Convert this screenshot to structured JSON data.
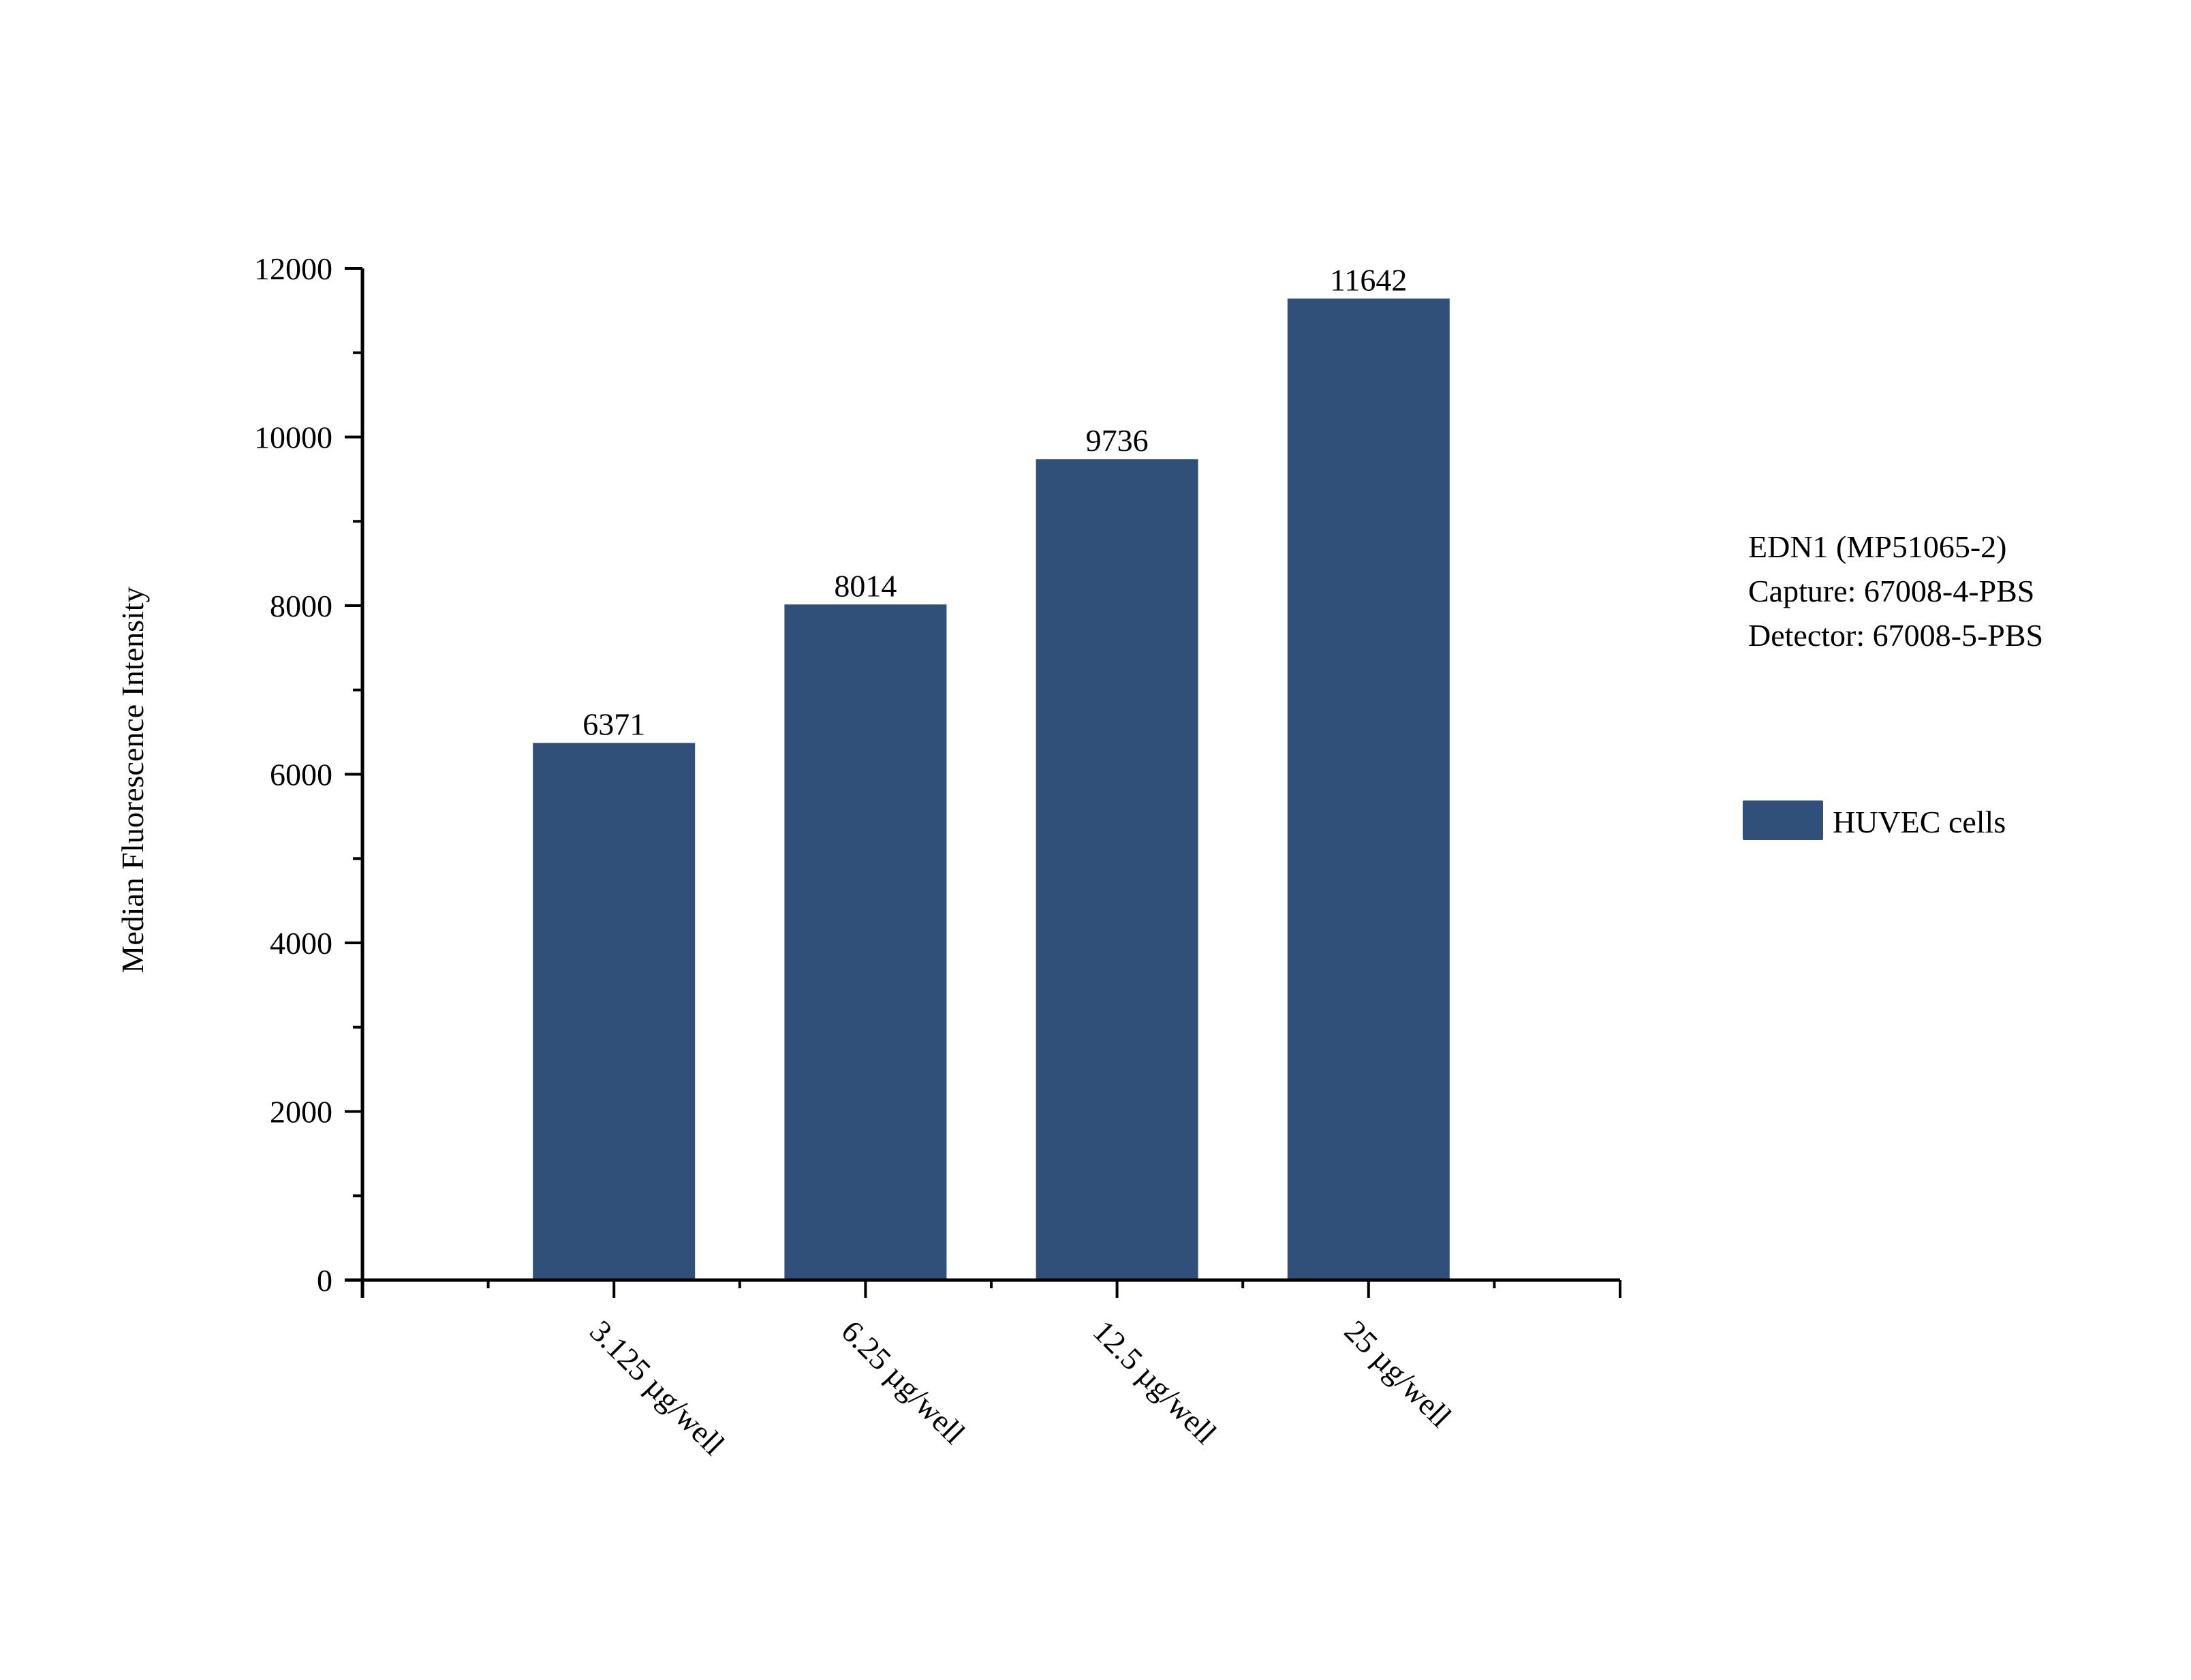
{
  "chart_data": {
    "type": "bar",
    "title": "",
    "xlabel": "",
    "ylabel": "Median Fluorescence Intensity",
    "categories": [
      "3.125 µg/well",
      "6.25 µg/well",
      "12.5 µg/well",
      "25 µg/well"
    ],
    "series": [
      {
        "name": "HUVEC cells",
        "values": [
          6371,
          8014,
          9736,
          11642
        ],
        "color": "#30507a"
      }
    ],
    "data_labels": [
      "6371",
      "8014",
      "9736",
      "11642"
    ],
    "ylim": [
      0,
      12000
    ],
    "yticks": [
      0,
      2000,
      4000,
      6000,
      8000,
      10000,
      12000
    ],
    "ytick_labels": [
      "0",
      "2000",
      "4000",
      "6000",
      "8000",
      "10000",
      "12000"
    ],
    "grid": false,
    "legend_position": "right",
    "x_label_rotation_deg": 45,
    "annotation": [
      "EDN1 (MP51065-2)",
      "Capture: 67008-4-PBS",
      "Detector: 67008-5-PBS"
    ]
  },
  "axes": {
    "ylabel": "Median Fluorescence Intensity"
  },
  "annotation": {
    "line1": "EDN1 (MP51065-2)",
    "line2": "Capture: 67008-4-PBS",
    "line3": "Detector: 67008-5-PBS"
  },
  "legend": {
    "label": "HUVEC cells",
    "color": "#30507a"
  }
}
